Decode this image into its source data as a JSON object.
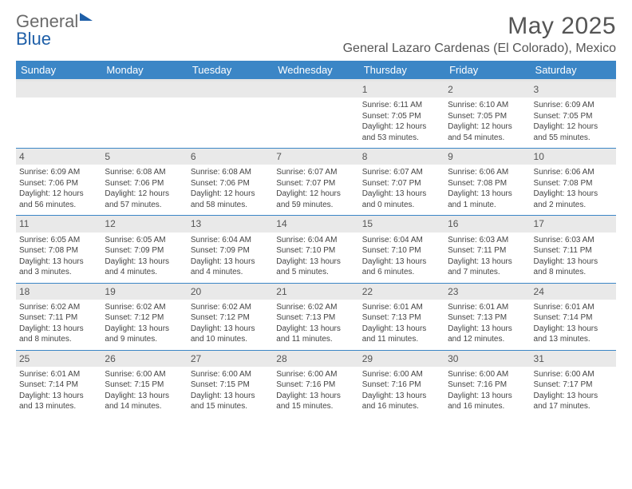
{
  "logo": {
    "part1": "General",
    "part2": "Blue"
  },
  "title": "May 2025",
  "location": "General Lazaro Cardenas (El Colorado), Mexico",
  "colors": {
    "header_bg": "#3b86c6",
    "header_text": "#ffffff",
    "stripe": "#e4e4e4",
    "daynum_bg": "#e9e9e9",
    "text": "#444444",
    "title_text": "#555555",
    "logo_gray": "#6a6a6a",
    "logo_blue": "#1e5fa8",
    "week_border": "#3b86c6"
  },
  "typography": {
    "title_size_pt": 30,
    "subtitle_size_pt": 16,
    "header_size_pt": 13,
    "daynum_size_pt": 12,
    "body_size_pt": 10
  },
  "dayHeaders": [
    "Sunday",
    "Monday",
    "Tuesday",
    "Wednesday",
    "Thursday",
    "Friday",
    "Saturday"
  ],
  "weeks": [
    [
      null,
      null,
      null,
      null,
      {
        "n": "1",
        "sr": "6:11 AM",
        "ss": "7:05 PM",
        "dl": "12 hours and 53 minutes."
      },
      {
        "n": "2",
        "sr": "6:10 AM",
        "ss": "7:05 PM",
        "dl": "12 hours and 54 minutes."
      },
      {
        "n": "3",
        "sr": "6:09 AM",
        "ss": "7:05 PM",
        "dl": "12 hours and 55 minutes."
      }
    ],
    [
      {
        "n": "4",
        "sr": "6:09 AM",
        "ss": "7:06 PM",
        "dl": "12 hours and 56 minutes."
      },
      {
        "n": "5",
        "sr": "6:08 AM",
        "ss": "7:06 PM",
        "dl": "12 hours and 57 minutes."
      },
      {
        "n": "6",
        "sr": "6:08 AM",
        "ss": "7:06 PM",
        "dl": "12 hours and 58 minutes."
      },
      {
        "n": "7",
        "sr": "6:07 AM",
        "ss": "7:07 PM",
        "dl": "12 hours and 59 minutes."
      },
      {
        "n": "8",
        "sr": "6:07 AM",
        "ss": "7:07 PM",
        "dl": "13 hours and 0 minutes."
      },
      {
        "n": "9",
        "sr": "6:06 AM",
        "ss": "7:08 PM",
        "dl": "13 hours and 1 minute."
      },
      {
        "n": "10",
        "sr": "6:06 AM",
        "ss": "7:08 PM",
        "dl": "13 hours and 2 minutes."
      }
    ],
    [
      {
        "n": "11",
        "sr": "6:05 AM",
        "ss": "7:08 PM",
        "dl": "13 hours and 3 minutes."
      },
      {
        "n": "12",
        "sr": "6:05 AM",
        "ss": "7:09 PM",
        "dl": "13 hours and 4 minutes."
      },
      {
        "n": "13",
        "sr": "6:04 AM",
        "ss": "7:09 PM",
        "dl": "13 hours and 4 minutes."
      },
      {
        "n": "14",
        "sr": "6:04 AM",
        "ss": "7:10 PM",
        "dl": "13 hours and 5 minutes."
      },
      {
        "n": "15",
        "sr": "6:04 AM",
        "ss": "7:10 PM",
        "dl": "13 hours and 6 minutes."
      },
      {
        "n": "16",
        "sr": "6:03 AM",
        "ss": "7:11 PM",
        "dl": "13 hours and 7 minutes."
      },
      {
        "n": "17",
        "sr": "6:03 AM",
        "ss": "7:11 PM",
        "dl": "13 hours and 8 minutes."
      }
    ],
    [
      {
        "n": "18",
        "sr": "6:02 AM",
        "ss": "7:11 PM",
        "dl": "13 hours and 8 minutes."
      },
      {
        "n": "19",
        "sr": "6:02 AM",
        "ss": "7:12 PM",
        "dl": "13 hours and 9 minutes."
      },
      {
        "n": "20",
        "sr": "6:02 AM",
        "ss": "7:12 PM",
        "dl": "13 hours and 10 minutes."
      },
      {
        "n": "21",
        "sr": "6:02 AM",
        "ss": "7:13 PM",
        "dl": "13 hours and 11 minutes."
      },
      {
        "n": "22",
        "sr": "6:01 AM",
        "ss": "7:13 PM",
        "dl": "13 hours and 11 minutes."
      },
      {
        "n": "23",
        "sr": "6:01 AM",
        "ss": "7:13 PM",
        "dl": "13 hours and 12 minutes."
      },
      {
        "n": "24",
        "sr": "6:01 AM",
        "ss": "7:14 PM",
        "dl": "13 hours and 13 minutes."
      }
    ],
    [
      {
        "n": "25",
        "sr": "6:01 AM",
        "ss": "7:14 PM",
        "dl": "13 hours and 13 minutes."
      },
      {
        "n": "26",
        "sr": "6:00 AM",
        "ss": "7:15 PM",
        "dl": "13 hours and 14 minutes."
      },
      {
        "n": "27",
        "sr": "6:00 AM",
        "ss": "7:15 PM",
        "dl": "13 hours and 15 minutes."
      },
      {
        "n": "28",
        "sr": "6:00 AM",
        "ss": "7:16 PM",
        "dl": "13 hours and 15 minutes."
      },
      {
        "n": "29",
        "sr": "6:00 AM",
        "ss": "7:16 PM",
        "dl": "13 hours and 16 minutes."
      },
      {
        "n": "30",
        "sr": "6:00 AM",
        "ss": "7:16 PM",
        "dl": "13 hours and 16 minutes."
      },
      {
        "n": "31",
        "sr": "6:00 AM",
        "ss": "7:17 PM",
        "dl": "13 hours and 17 minutes."
      }
    ]
  ],
  "labels": {
    "sunrise": "Sunrise:",
    "sunset": "Sunset:",
    "daylight": "Daylight:"
  }
}
